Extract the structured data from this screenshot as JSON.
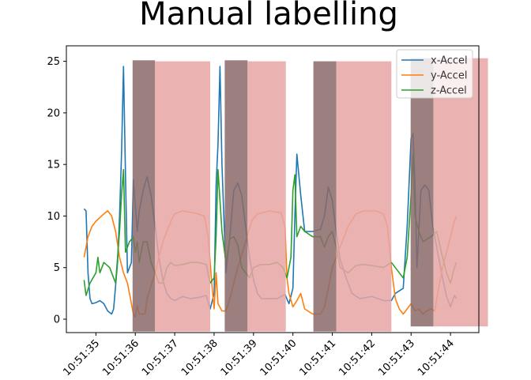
{
  "chart_data": {
    "type": "line",
    "title": "Manual labelling",
    "xlabel": "",
    "ylabel": "",
    "ylim": [
      -1.3,
      26.5
    ],
    "xlim": [
      -0.75,
      9.72
    ],
    "x_tick_labels": [
      "10:51:35",
      "10:51:36",
      "10:51:37",
      "10:51:38",
      "10:51:39",
      "10:51:40",
      "10:51:41",
      "10:51:42",
      "10:51:43",
      "10:51:44"
    ],
    "y_ticks": [
      0,
      5,
      10,
      15,
      20,
      25
    ],
    "grid": false,
    "legend_position": "top-right",
    "x_unit_note": "x values are seconds after 10:51:35",
    "series": [
      {
        "name": "x-Accel",
        "color": "#1f77b4",
        "points": [
          [
            -0.3,
            10.7
          ],
          [
            -0.25,
            10.5
          ],
          [
            -0.2,
            4.5
          ],
          [
            -0.15,
            2.0
          ],
          [
            -0.1,
            1.5
          ],
          [
            0.0,
            1.6
          ],
          [
            0.1,
            1.8
          ],
          [
            0.2,
            1.5
          ],
          [
            0.3,
            0.8
          ],
          [
            0.4,
            0.5
          ],
          [
            0.45,
            1.0
          ],
          [
            0.55,
            5.5
          ],
          [
            0.6,
            10.0
          ],
          [
            0.65,
            16.0
          ],
          [
            0.7,
            24.5
          ],
          [
            0.75,
            14.0
          ],
          [
            0.8,
            4.5
          ],
          [
            0.9,
            5.5
          ],
          [
            0.95,
            13.5
          ],
          [
            1.05,
            8.5
          ],
          [
            1.1,
            10.5
          ],
          [
            1.2,
            12.5
          ],
          [
            1.3,
            13.8
          ],
          [
            1.4,
            12.0
          ],
          [
            1.5,
            9.0
          ],
          [
            1.6,
            6.0
          ],
          [
            1.7,
            3.8
          ],
          [
            1.8,
            2.5
          ],
          [
            1.9,
            2.0
          ],
          [
            2.0,
            1.8
          ],
          [
            2.2,
            2.2
          ],
          [
            2.4,
            2.0
          ],
          [
            2.6,
            2.1
          ],
          [
            2.8,
            2.3
          ],
          [
            2.9,
            1.0
          ],
          [
            3.0,
            2.5
          ],
          [
            3.05,
            13.0
          ],
          [
            3.1,
            17.0
          ],
          [
            3.15,
            24.5
          ],
          [
            3.2,
            15.0
          ],
          [
            3.3,
            4.5
          ],
          [
            3.4,
            8.0
          ],
          [
            3.5,
            12.5
          ],
          [
            3.6,
            13.2
          ],
          [
            3.7,
            12.0
          ],
          [
            3.8,
            9.0
          ],
          [
            3.9,
            6.0
          ],
          [
            4.0,
            3.8
          ],
          [
            4.1,
            2.5
          ],
          [
            4.2,
            2.0
          ],
          [
            4.4,
            2.0
          ],
          [
            4.6,
            2.0
          ],
          [
            4.8,
            2.4
          ],
          [
            4.9,
            1.5
          ],
          [
            5.0,
            3.0
          ],
          [
            5.05,
            10.0
          ],
          [
            5.1,
            16.0
          ],
          [
            5.2,
            12.0
          ],
          [
            5.3,
            8.5
          ],
          [
            5.5,
            8.5
          ],
          [
            5.7,
            8.7
          ],
          [
            5.8,
            10.0
          ],
          [
            5.9,
            12.8
          ],
          [
            6.0,
            11.5
          ],
          [
            6.1,
            8.5
          ],
          [
            6.2,
            5.8
          ],
          [
            6.35,
            4.0
          ],
          [
            6.5,
            2.5
          ],
          [
            6.7,
            2.0
          ],
          [
            7.0,
            2.2
          ],
          [
            7.3,
            1.8
          ],
          [
            7.5,
            1.8
          ],
          [
            7.6,
            2.5
          ],
          [
            7.8,
            3.0
          ],
          [
            7.9,
            9.0
          ],
          [
            8.0,
            17.5
          ],
          [
            8.05,
            18.0
          ],
          [
            8.1,
            13.0
          ],
          [
            8.15,
            5.0
          ],
          [
            8.25,
            12.5
          ],
          [
            8.35,
            13.0
          ],
          [
            8.45,
            12.5
          ],
          [
            8.55,
            9.0
          ],
          [
            8.7,
            6.0
          ],
          [
            8.8,
            4.0
          ],
          [
            8.9,
            2.2
          ],
          [
            9.0,
            1.2
          ],
          [
            9.1,
            2.3
          ],
          [
            9.15,
            2.0
          ]
        ]
      },
      {
        "name": "y-Accel",
        "color": "#ff7f0e",
        "points": [
          [
            -0.3,
            6.0
          ],
          [
            -0.2,
            8.0
          ],
          [
            -0.1,
            9.0
          ],
          [
            0.0,
            9.5
          ],
          [
            0.2,
            10.2
          ],
          [
            0.3,
            10.5
          ],
          [
            0.4,
            10.0
          ],
          [
            0.5,
            8.5
          ],
          [
            0.6,
            6.0
          ],
          [
            0.7,
            4.5
          ],
          [
            0.8,
            3.5
          ],
          [
            0.9,
            1.5
          ],
          [
            0.95,
            0.5
          ],
          [
            1.0,
            0.2
          ],
          [
            1.05,
            1.3
          ],
          [
            1.1,
            0.5
          ],
          [
            1.2,
            0.5
          ],
          [
            1.25,
            0.6
          ],
          [
            1.3,
            2.0
          ],
          [
            1.5,
            4.5
          ],
          [
            1.7,
            7.5
          ],
          [
            1.9,
            9.5
          ],
          [
            2.0,
            10.2
          ],
          [
            2.2,
            10.5
          ],
          [
            2.5,
            10.3
          ],
          [
            2.75,
            10.0
          ],
          [
            2.85,
            8.0
          ],
          [
            2.95,
            3.0
          ],
          [
            3.0,
            1.0
          ],
          [
            3.05,
            4.5
          ],
          [
            3.1,
            1.5
          ],
          [
            3.2,
            0.8
          ],
          [
            3.3,
            0.8
          ],
          [
            3.4,
            2.0
          ],
          [
            3.6,
            5.0
          ],
          [
            3.8,
            7.5
          ],
          [
            3.95,
            9.5
          ],
          [
            4.1,
            10.2
          ],
          [
            4.4,
            10.5
          ],
          [
            4.7,
            10.3
          ],
          [
            4.8,
            9.0
          ],
          [
            4.85,
            4.0
          ],
          [
            4.9,
            2.5
          ],
          [
            5.0,
            1.2
          ],
          [
            5.1,
            1.8
          ],
          [
            5.2,
            2.5
          ],
          [
            5.3,
            1.0
          ],
          [
            5.5,
            0.5
          ],
          [
            5.7,
            0.5
          ],
          [
            5.8,
            1.2
          ],
          [
            5.9,
            3.0
          ],
          [
            6.0,
            5.0
          ],
          [
            6.2,
            7.0
          ],
          [
            6.4,
            9.0
          ],
          [
            6.6,
            10.2
          ],
          [
            6.8,
            10.5
          ],
          [
            7.1,
            10.5
          ],
          [
            7.3,
            10.2
          ],
          [
            7.4,
            9.0
          ],
          [
            7.5,
            5.0
          ],
          [
            7.6,
            2.0
          ],
          [
            7.7,
            1.0
          ],
          [
            7.8,
            0.5
          ],
          [
            7.9,
            1.0
          ],
          [
            8.0,
            1.5
          ],
          [
            8.1,
            0.8
          ],
          [
            8.2,
            1.0
          ],
          [
            8.3,
            0.5
          ],
          [
            8.4,
            0.8
          ],
          [
            8.5,
            1.0
          ],
          [
            8.6,
            0.8
          ],
          [
            8.7,
            3.0
          ],
          [
            8.8,
            5.0
          ],
          [
            9.0,
            8.0
          ],
          [
            9.1,
            9.5
          ],
          [
            9.15,
            10.0
          ]
        ]
      },
      {
        "name": "z-Accel",
        "color": "#2ca02c",
        "points": [
          [
            -0.3,
            3.8
          ],
          [
            -0.25,
            2.3
          ],
          [
            -0.15,
            3.5
          ],
          [
            0.0,
            4.5
          ],
          [
            0.05,
            6.0
          ],
          [
            0.1,
            4.5
          ],
          [
            0.2,
            5.5
          ],
          [
            0.35,
            5.0
          ],
          [
            0.45,
            4.0
          ],
          [
            0.5,
            3.5
          ],
          [
            0.6,
            8.5
          ],
          [
            0.65,
            12.0
          ],
          [
            0.7,
            14.5
          ],
          [
            0.75,
            6.5
          ],
          [
            0.85,
            7.5
          ],
          [
            0.95,
            8.0
          ],
          [
            1.0,
            6.5
          ],
          [
            1.05,
            7.5
          ],
          [
            1.1,
            5.5
          ],
          [
            1.2,
            7.5
          ],
          [
            1.3,
            7.5
          ],
          [
            1.4,
            5.5
          ],
          [
            1.5,
            4.5
          ],
          [
            1.6,
            3.5
          ],
          [
            1.7,
            3.5
          ],
          [
            1.8,
            5.0
          ],
          [
            1.9,
            5.5
          ],
          [
            2.0,
            5.2
          ],
          [
            2.2,
            5.3
          ],
          [
            2.4,
            5.5
          ],
          [
            2.6,
            5.5
          ],
          [
            2.8,
            5.3
          ],
          [
            2.9,
            3.5
          ],
          [
            3.0,
            4.0
          ],
          [
            3.05,
            8.0
          ],
          [
            3.1,
            14.5
          ],
          [
            3.2,
            8.5
          ],
          [
            3.3,
            5.5
          ],
          [
            3.4,
            7.8
          ],
          [
            3.5,
            8.0
          ],
          [
            3.6,
            7.2
          ],
          [
            3.7,
            5.0
          ],
          [
            3.8,
            4.5
          ],
          [
            3.9,
            4.0
          ],
          [
            4.0,
            5.0
          ],
          [
            4.2,
            5.3
          ],
          [
            4.4,
            5.3
          ],
          [
            4.6,
            5.5
          ],
          [
            4.75,
            5.0
          ],
          [
            4.85,
            4.0
          ],
          [
            4.95,
            6.0
          ],
          [
            5.0,
            12.5
          ],
          [
            5.05,
            14.0
          ],
          [
            5.1,
            8.0
          ],
          [
            5.2,
            9.0
          ],
          [
            5.3,
            8.5
          ],
          [
            5.5,
            8.0
          ],
          [
            5.7,
            8.0
          ],
          [
            5.8,
            7.0
          ],
          [
            5.9,
            8.0
          ],
          [
            6.0,
            8.5
          ],
          [
            6.1,
            7.0
          ],
          [
            6.2,
            5.0
          ],
          [
            6.4,
            4.5
          ],
          [
            6.6,
            5.2
          ],
          [
            6.8,
            5.3
          ],
          [
            7.0,
            5.2
          ],
          [
            7.3,
            5.0
          ],
          [
            7.5,
            5.5
          ],
          [
            7.7,
            4.5
          ],
          [
            7.8,
            4.0
          ],
          [
            7.9,
            6.0
          ],
          [
            8.0,
            12.0
          ],
          [
            8.05,
            16.0
          ],
          [
            8.1,
            10.0
          ],
          [
            8.2,
            8.5
          ],
          [
            8.3,
            7.5
          ],
          [
            8.5,
            8.0
          ],
          [
            8.65,
            8.5
          ],
          [
            8.8,
            6.0
          ],
          [
            8.9,
            4.5
          ],
          [
            9.0,
            3.5
          ],
          [
            9.1,
            5.0
          ],
          [
            9.15,
            5.5
          ]
        ]
      }
    ],
    "label_spans": [
      {
        "start": 0.93,
        "end": 1.5,
        "value_top": 25.1,
        "value_bottom": -1.2,
        "color": "#8b6a6a"
      },
      {
        "start": 1.5,
        "end": 2.9,
        "value_top": 25.0,
        "value_bottom": -1.2,
        "color": "#e8a5a5"
      },
      {
        "start": 3.27,
        "end": 3.85,
        "value_top": 25.1,
        "value_bottom": -1.2,
        "color": "#8b6a6a"
      },
      {
        "start": 3.85,
        "end": 4.82,
        "value_top": 25.0,
        "value_bottom": -1.2,
        "color": "#e8a5a5"
      },
      {
        "start": 5.52,
        "end": 6.1,
        "value_top": 25.0,
        "value_bottom": -1.2,
        "color": "#8b6a6a"
      },
      {
        "start": 6.1,
        "end": 7.5,
        "value_top": 25.0,
        "value_bottom": -1.2,
        "color": "#e8a5a5"
      },
      {
        "start": 7.99,
        "end": 8.57,
        "value_top": 25.3,
        "value_bottom": -0.7,
        "color": "#8b6a6a"
      },
      {
        "start": 8.57,
        "end": 9.95,
        "value_top": 25.3,
        "value_bottom": -0.7,
        "color": "#e8a5a5"
      }
    ]
  }
}
